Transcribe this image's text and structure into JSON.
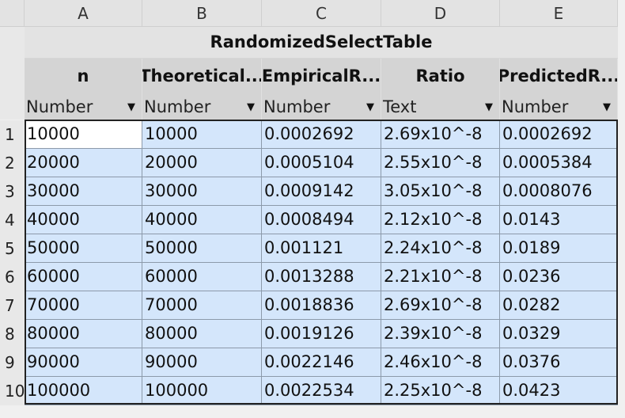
{
  "spreadsheet": {
    "columns": [
      "A",
      "B",
      "C",
      "D",
      "E"
    ],
    "table_title": "RandomizedSelectTable",
    "headers": [
      "n",
      "Theoretical...",
      "EmpiricalR...",
      "Ratio",
      "PredictedR..."
    ],
    "types": [
      "Number",
      "Number",
      "Number",
      "Text",
      "Number"
    ],
    "row_numbers": [
      "1",
      "2",
      "3",
      "4",
      "5",
      "6",
      "7",
      "8",
      "9",
      "10"
    ],
    "rows": [
      [
        "10000",
        "10000",
        "0.0002692",
        "2.69x10^-8",
        "0.0002692"
      ],
      [
        "20000",
        "20000",
        "0.0005104",
        "2.55x10^-8",
        "0.0005384"
      ],
      [
        "30000",
        "30000",
        "0.0009142",
        "3.05x10^-8",
        "0.0008076"
      ],
      [
        "40000",
        "40000",
        "0.0008494",
        "2.12x10^-8",
        "0.0143"
      ],
      [
        "50000",
        "50000",
        "0.001121",
        "2.24x10^-8",
        "0.0189"
      ],
      [
        "60000",
        "60000",
        "0.0013288",
        "2.21x10^-8",
        "0.0236"
      ],
      [
        "70000",
        "70000",
        "0.0018836",
        "2.69x10^-8",
        "0.0282"
      ],
      [
        "80000",
        "80000",
        "0.0019126",
        "2.39x10^-8",
        "0.0329"
      ],
      [
        "90000",
        "90000",
        "0.0022146",
        "2.46x10^-8",
        "0.0376"
      ],
      [
        "100000",
        "100000",
        "0.0022534",
        "2.25x10^-8",
        "0.0423"
      ]
    ],
    "active_cell": "A1",
    "dropdown_icon": "triangle-down-icon"
  }
}
